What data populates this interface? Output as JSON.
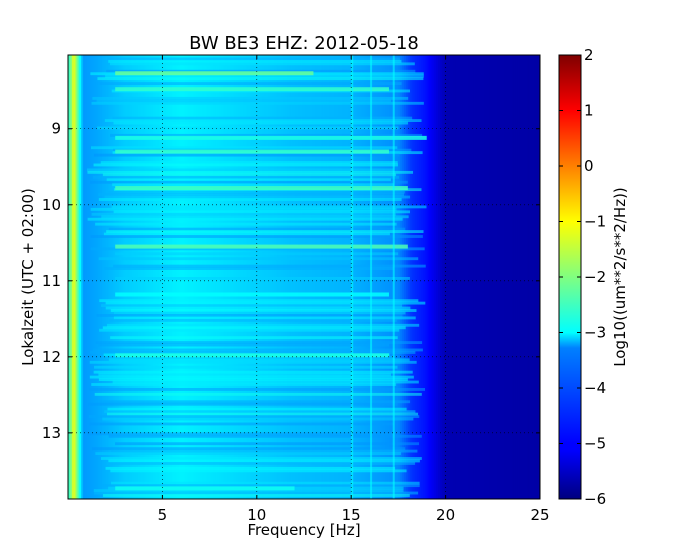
{
  "chart_data": {
    "type": "heatmap",
    "title": "BW BE3 EHZ: 2012-05-18",
    "xlabel": "Frequency [Hz]",
    "ylabel": "Lokalzeit (UTC + 02:00)",
    "xlim": [
      0,
      25
    ],
    "ylim": [
      13.87,
      8.03
    ],
    "xticks": [
      5,
      10,
      15,
      20,
      25
    ],
    "xtick_labels": [
      "5",
      "10",
      "15",
      "20",
      "25"
    ],
    "yticks": [
      9,
      10,
      11,
      12,
      13
    ],
    "ytick_labels": [
      "9",
      "10",
      "11",
      "12",
      "13"
    ],
    "grid": true,
    "colormap": "jet",
    "colorbar": {
      "label": "Log10((um**2/s**2/Hz))",
      "range": [
        -6,
        2
      ],
      "ticks": [
        2,
        1,
        0,
        -1,
        -2,
        -3,
        -4,
        -5,
        -6
      ],
      "tick_labels": [
        "2",
        "1",
        "0",
        "−1",
        "−2",
        "−3",
        "−4",
        "−5",
        "−6"
      ]
    },
    "frequency_profile": [
      {
        "freq": 0.1,
        "value": -2.5
      },
      {
        "freq": 0.3,
        "value": -1.0
      },
      {
        "freq": 0.5,
        "value": -2.2
      },
      {
        "freq": 0.8,
        "value": -3.8
      },
      {
        "freq": 1.5,
        "value": -3.7
      },
      {
        "freq": 3.0,
        "value": -3.4
      },
      {
        "freq": 6.0,
        "value": -3.1
      },
      {
        "freq": 9.0,
        "value": -3.3
      },
      {
        "freq": 12.0,
        "value": -3.5
      },
      {
        "freq": 15.0,
        "value": -3.6
      },
      {
        "freq": 17.5,
        "value": -3.9
      },
      {
        "freq": 18.2,
        "value": -4.6
      },
      {
        "freq": 19.0,
        "value": -4.9
      },
      {
        "freq": 20.0,
        "value": -5.6
      },
      {
        "freq": 25.0,
        "value": -5.7
      }
    ],
    "bright_bands": [
      {
        "time": 8.27,
        "freq_range": [
          2.5,
          13
        ],
        "value": -2.2
      },
      {
        "time": 8.48,
        "freq_range": [
          2.5,
          17
        ],
        "value": -2.6
      },
      {
        "time": 9.12,
        "freq_range": [
          2.5,
          19
        ],
        "value": -2.8
      },
      {
        "time": 9.3,
        "freq_range": [
          2.5,
          17
        ],
        "value": -2.6
      },
      {
        "time": 9.78,
        "freq_range": [
          2.5,
          18
        ],
        "value": -2.5
      },
      {
        "time": 10.55,
        "freq_range": [
          2.5,
          18
        ],
        "value": -2.4
      },
      {
        "time": 11.18,
        "freq_range": [
          2.5,
          17
        ],
        "value": -3.0
      },
      {
        "time": 11.98,
        "freq_range": [
          2.5,
          17
        ],
        "value": -2.8
      },
      {
        "time": 13.73,
        "freq_range": [
          2.5,
          12
        ],
        "value": -2.9
      }
    ]
  }
}
